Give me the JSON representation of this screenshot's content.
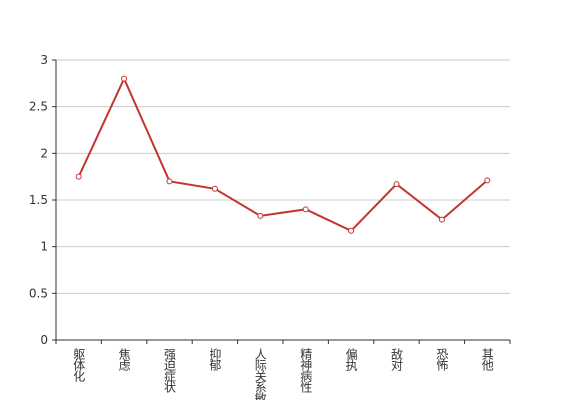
{
  "chart_data": {
    "type": "line",
    "categories": [
      "躯体化",
      "焦虑",
      "强迫症状",
      "抑郁",
      "人际关系敏感",
      "精神病性",
      "偏执",
      "敌对",
      "恐怖",
      "其他"
    ],
    "values": [
      1.75,
      2.8,
      1.7,
      1.62,
      1.33,
      1.4,
      1.17,
      1.67,
      1.29,
      1.71
    ],
    "color": "#c23531",
    "ylim": [
      0,
      3
    ],
    "yticks": [
      0,
      0.5,
      1,
      1.5,
      2,
      2.5,
      3
    ],
    "grid": true
  }
}
